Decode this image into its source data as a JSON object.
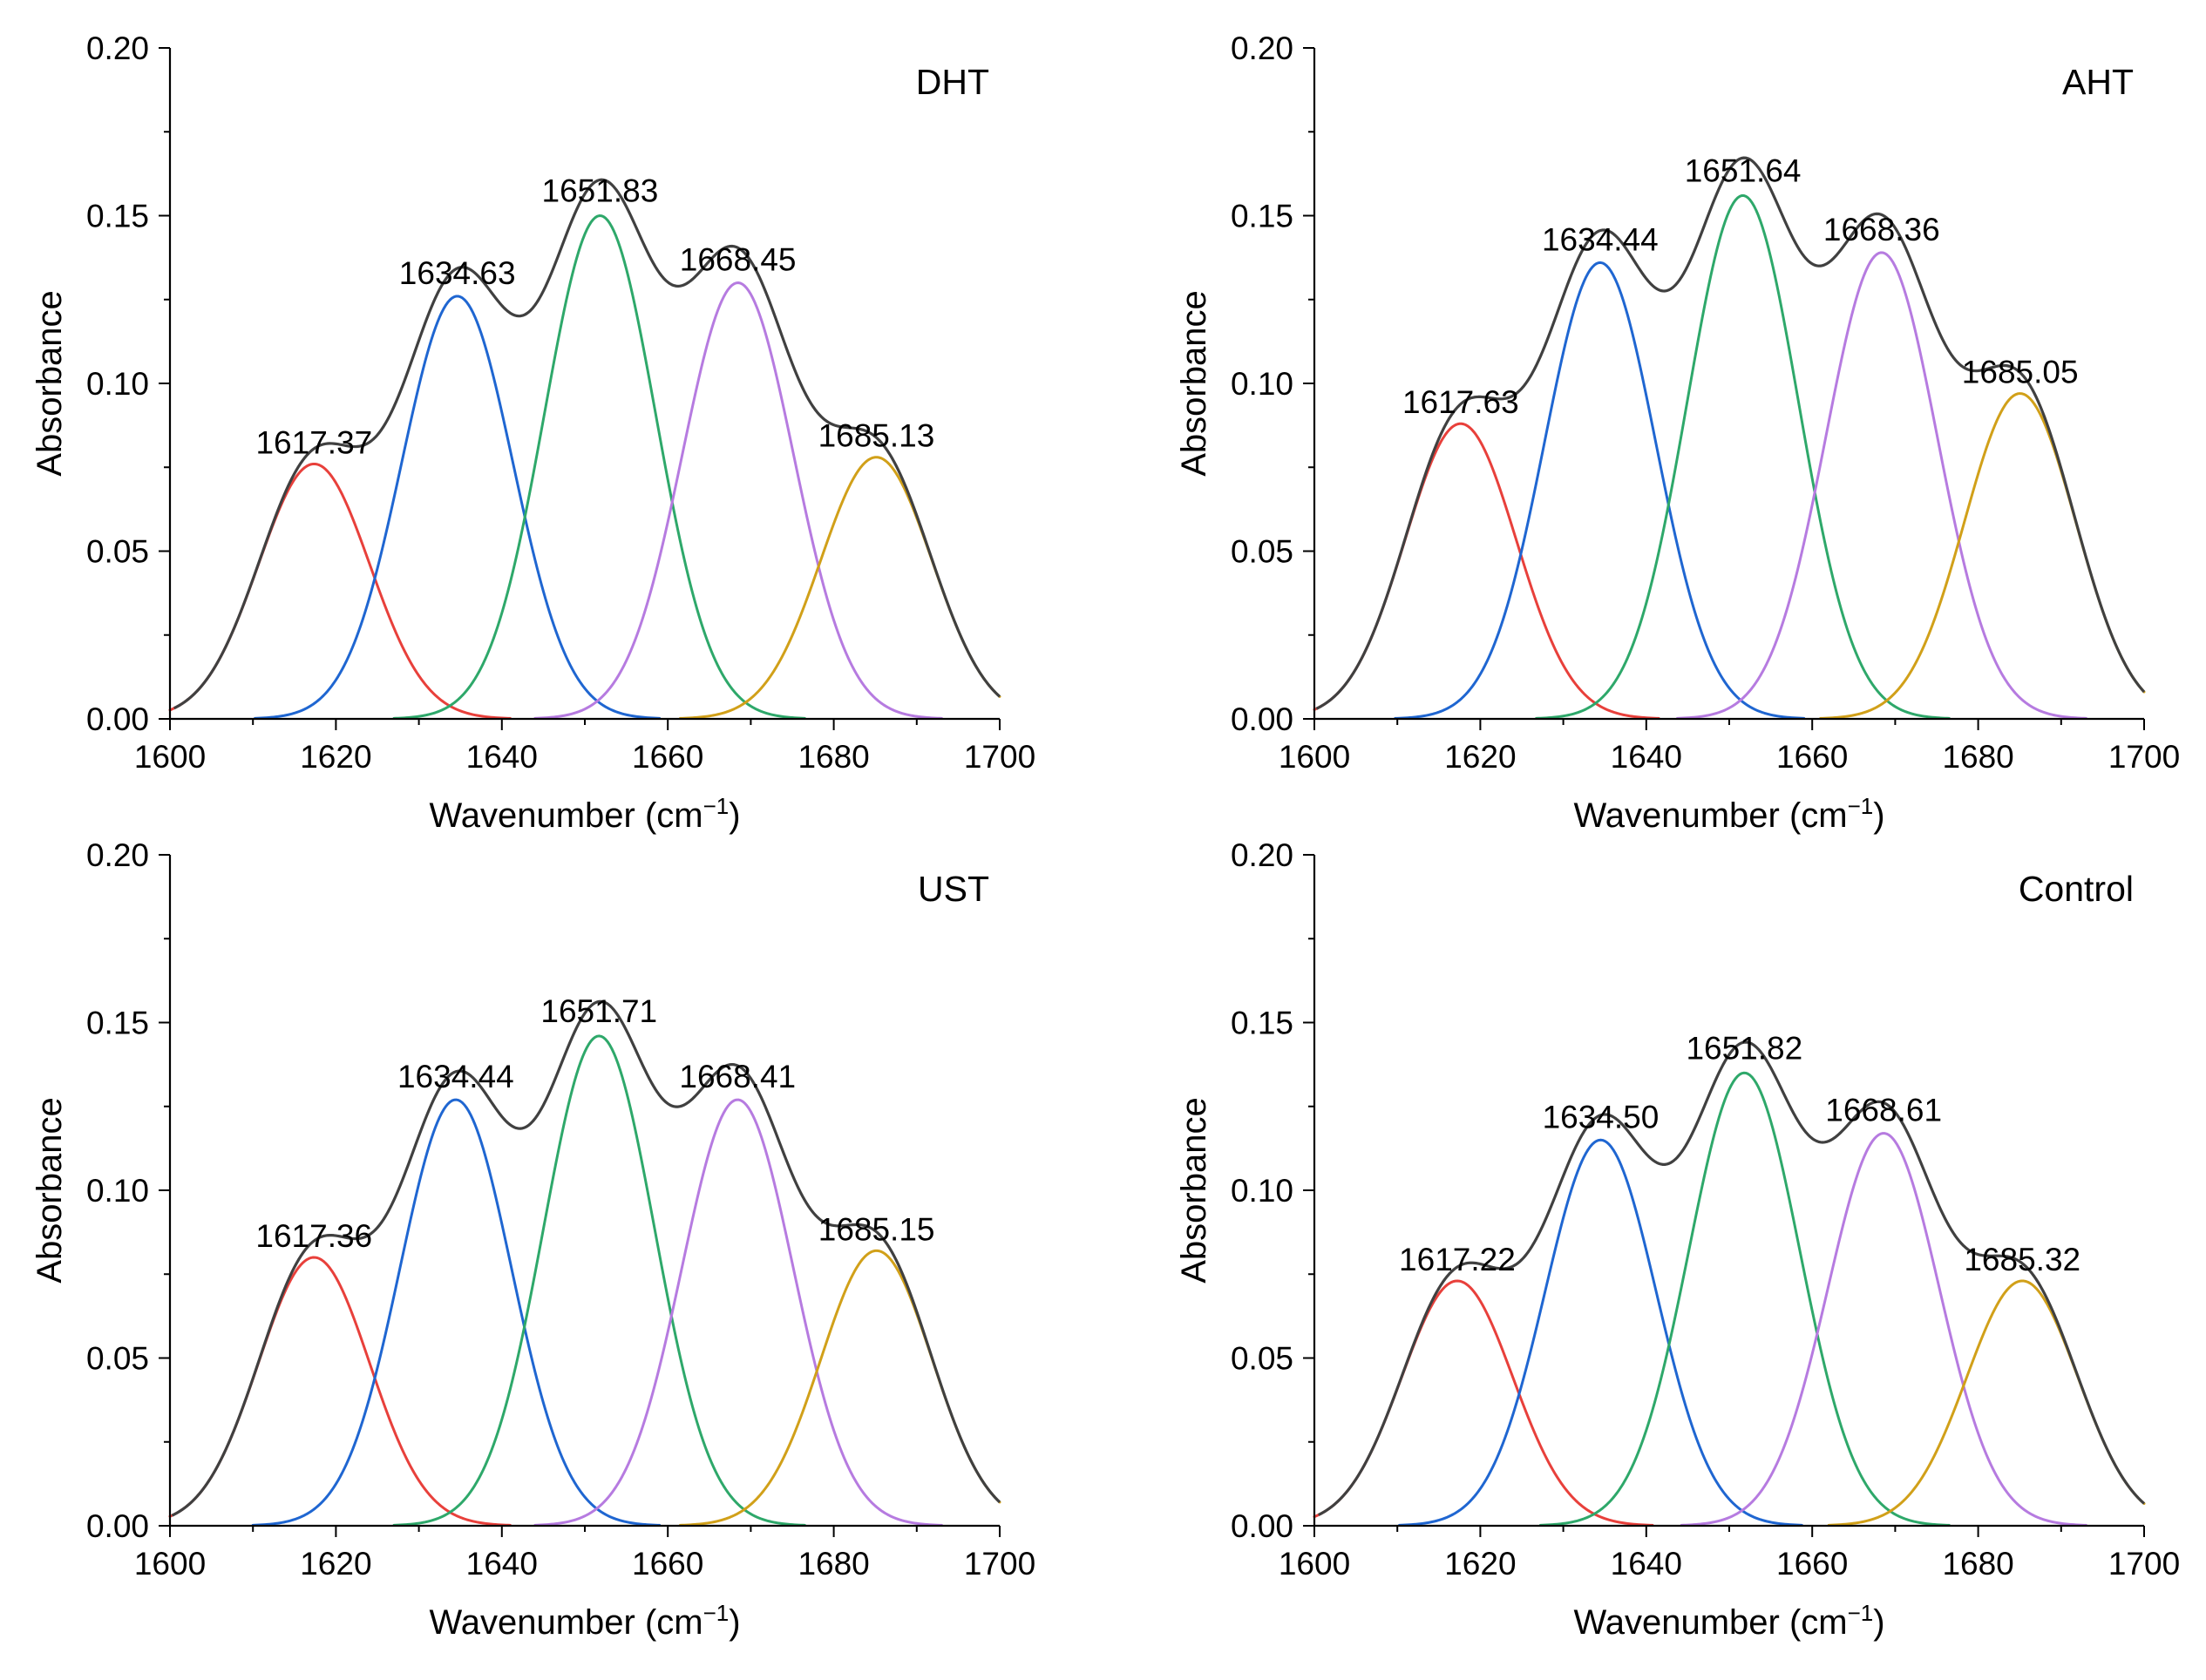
{
  "colors": {
    "axis": "#000000",
    "envelope": "#404040",
    "components": [
      "#e8403b",
      "#1f66d1",
      "#2ea86a",
      "#b67be0",
      "#d1a019"
    ]
  },
  "chart_data": [
    {
      "type": "line",
      "title": "DHT",
      "xlabel": "Wavenumber (cm",
      "xlabel_sup": "−1",
      "xlabel_close": ")",
      "ylabel": "Absorbance",
      "xlim": [
        1600,
        1700
      ],
      "ylim": [
        0,
        0.2
      ],
      "x_ticks": [
        1600,
        1620,
        1640,
        1660,
        1680,
        1700
      ],
      "x_tick_labels": [
        "1600",
        "1620",
        "1640",
        "1660",
        "1680",
        "1700"
      ],
      "y_ticks": [
        0,
        0.05,
        0.1,
        0.15,
        0.2
      ],
      "y_tick_labels": [
        "0.00",
        "0.05",
        "0.10",
        "0.15",
        "0.20"
      ],
      "series": [
        {
          "name": "1617.37",
          "center": 1617.37,
          "amplitude": 0.076,
          "sigma": 6.7
        },
        {
          "name": "1634.63",
          "center": 1634.63,
          "amplitude": 0.126,
          "sigma": 6.7
        },
        {
          "name": "1651.83",
          "center": 1651.83,
          "amplitude": 0.15,
          "sigma": 6.7
        },
        {
          "name": "1668.45",
          "center": 1668.45,
          "amplitude": 0.13,
          "sigma": 6.7
        },
        {
          "name": "1685.13",
          "center": 1685.13,
          "amplitude": 0.078,
          "sigma": 6.7
        }
      ]
    },
    {
      "type": "line",
      "title": "AHT",
      "xlabel": "Wavenumber (cm",
      "xlabel_sup": "−1",
      "xlabel_close": ")",
      "ylabel": "Absorbance",
      "xlim": [
        1600,
        1700
      ],
      "ylim": [
        0,
        0.2
      ],
      "x_ticks": [
        1600,
        1620,
        1640,
        1660,
        1680,
        1700
      ],
      "x_tick_labels": [
        "1600",
        "1620",
        "1640",
        "1660",
        "1680",
        "1700"
      ],
      "y_ticks": [
        0,
        0.05,
        0.1,
        0.15,
        0.2
      ],
      "y_tick_labels": [
        "0.00",
        "0.05",
        "0.10",
        "0.15",
        "0.20"
      ],
      "series": [
        {
          "name": "1617.63",
          "center": 1617.63,
          "amplitude": 0.088,
          "sigma": 6.7
        },
        {
          "name": "1634.44",
          "center": 1634.44,
          "amplitude": 0.136,
          "sigma": 6.7
        },
        {
          "name": "1651.64",
          "center": 1651.64,
          "amplitude": 0.156,
          "sigma": 6.7
        },
        {
          "name": "1668.36",
          "center": 1668.36,
          "amplitude": 0.139,
          "sigma": 6.7
        },
        {
          "name": "1685.05",
          "center": 1685.05,
          "amplitude": 0.097,
          "sigma": 6.7
        }
      ]
    },
    {
      "type": "line",
      "title": "UST",
      "xlabel": "Wavenumber (cm",
      "xlabel_sup": "−1",
      "xlabel_close": ")",
      "ylabel": "Absorbance",
      "xlim": [
        1600,
        1700
      ],
      "ylim": [
        0,
        0.2
      ],
      "x_ticks": [
        1600,
        1620,
        1640,
        1660,
        1680,
        1700
      ],
      "x_tick_labels": [
        "1600",
        "1620",
        "1640",
        "1660",
        "1680",
        "1700"
      ],
      "y_ticks": [
        0,
        0.05,
        0.1,
        0.15,
        0.2
      ],
      "y_tick_labels": [
        "0.00",
        "0.05",
        "0.10",
        "0.15",
        "0.20"
      ],
      "series": [
        {
          "name": "1617.36",
          "center": 1617.36,
          "amplitude": 0.08,
          "sigma": 6.7
        },
        {
          "name": "1634.44",
          "center": 1634.44,
          "amplitude": 0.127,
          "sigma": 6.7
        },
        {
          "name": "1651.71",
          "center": 1651.71,
          "amplitude": 0.146,
          "sigma": 6.7
        },
        {
          "name": "1668.41",
          "center": 1668.41,
          "amplitude": 0.127,
          "sigma": 6.7
        },
        {
          "name": "1685.15",
          "center": 1685.15,
          "amplitude": 0.082,
          "sigma": 6.7
        }
      ]
    },
    {
      "type": "line",
      "title": "Control",
      "xlabel": "Wavenumber (cm",
      "xlabel_sup": "−1",
      "xlabel_close": ")",
      "ylabel": "Absorbance",
      "xlim": [
        1600,
        1700
      ],
      "ylim": [
        0,
        0.2
      ],
      "x_ticks": [
        1600,
        1620,
        1640,
        1660,
        1680,
        1700
      ],
      "x_tick_labels": [
        "1600",
        "1620",
        "1640",
        "1660",
        "1680",
        "1700"
      ],
      "y_ticks": [
        0,
        0.05,
        0.1,
        0.15,
        0.2
      ],
      "y_tick_labels": [
        "0.00",
        "0.05",
        "0.10",
        "0.15",
        "0.20"
      ],
      "series": [
        {
          "name": "1617.22",
          "center": 1617.22,
          "amplitude": 0.073,
          "sigma": 6.7
        },
        {
          "name": "1634.50",
          "center": 1634.5,
          "amplitude": 0.115,
          "sigma": 6.7
        },
        {
          "name": "1651.82",
          "center": 1651.82,
          "amplitude": 0.135,
          "sigma": 6.7
        },
        {
          "name": "1668.61",
          "center": 1668.61,
          "amplitude": 0.117,
          "sigma": 6.7
        },
        {
          "name": "1685.32",
          "center": 1685.32,
          "amplitude": 0.073,
          "sigma": 6.7
        }
      ]
    }
  ]
}
